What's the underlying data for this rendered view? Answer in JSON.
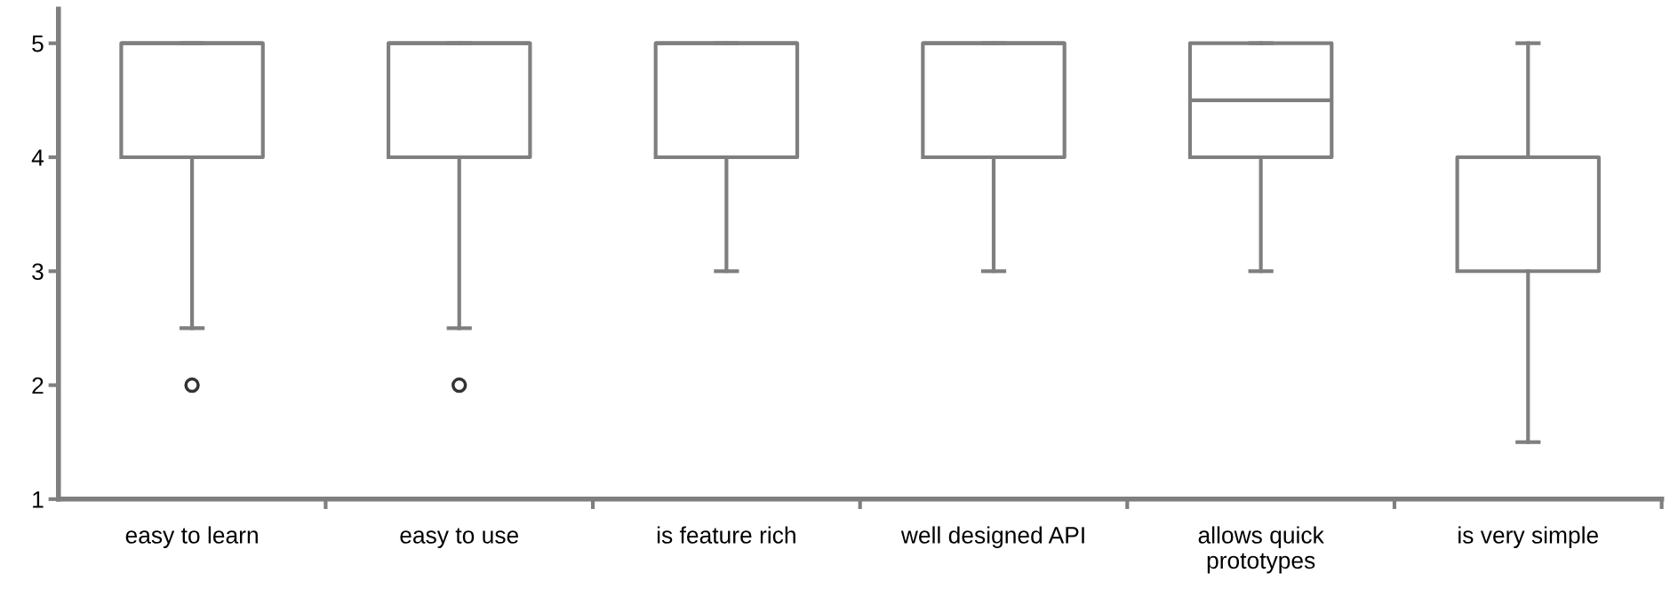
{
  "chart_data": {
    "type": "box",
    "categories": [
      "easy to learn",
      "easy to use",
      "is feature rich",
      "well designed API",
      "allows quick\nprototypes",
      "is very simple"
    ],
    "boxes": [
      {
        "low": 2.5,
        "q1": 4,
        "median": 5,
        "q3": 5,
        "high": 5,
        "outliers": [
          2
        ]
      },
      {
        "low": 2.5,
        "q1": 4,
        "median": 5,
        "q3": 5,
        "high": 5,
        "outliers": [
          2
        ]
      },
      {
        "low": 3,
        "q1": 4,
        "median": 5,
        "q3": 5,
        "high": 5
      },
      {
        "low": 3,
        "q1": 4,
        "median": 5,
        "q3": 5,
        "high": 5
      },
      {
        "low": 3,
        "q1": 4,
        "median": 4.5,
        "q3": 5,
        "high": 5
      },
      {
        "low": 1.5,
        "q1": 3,
        "median": 4,
        "q3": 4,
        "high": 5
      }
    ],
    "color": "#7f7f7f",
    "ylim": [
      1,
      5.3
    ],
    "yticks": [
      1,
      2,
      3,
      4,
      5
    ],
    "grid": false
  }
}
